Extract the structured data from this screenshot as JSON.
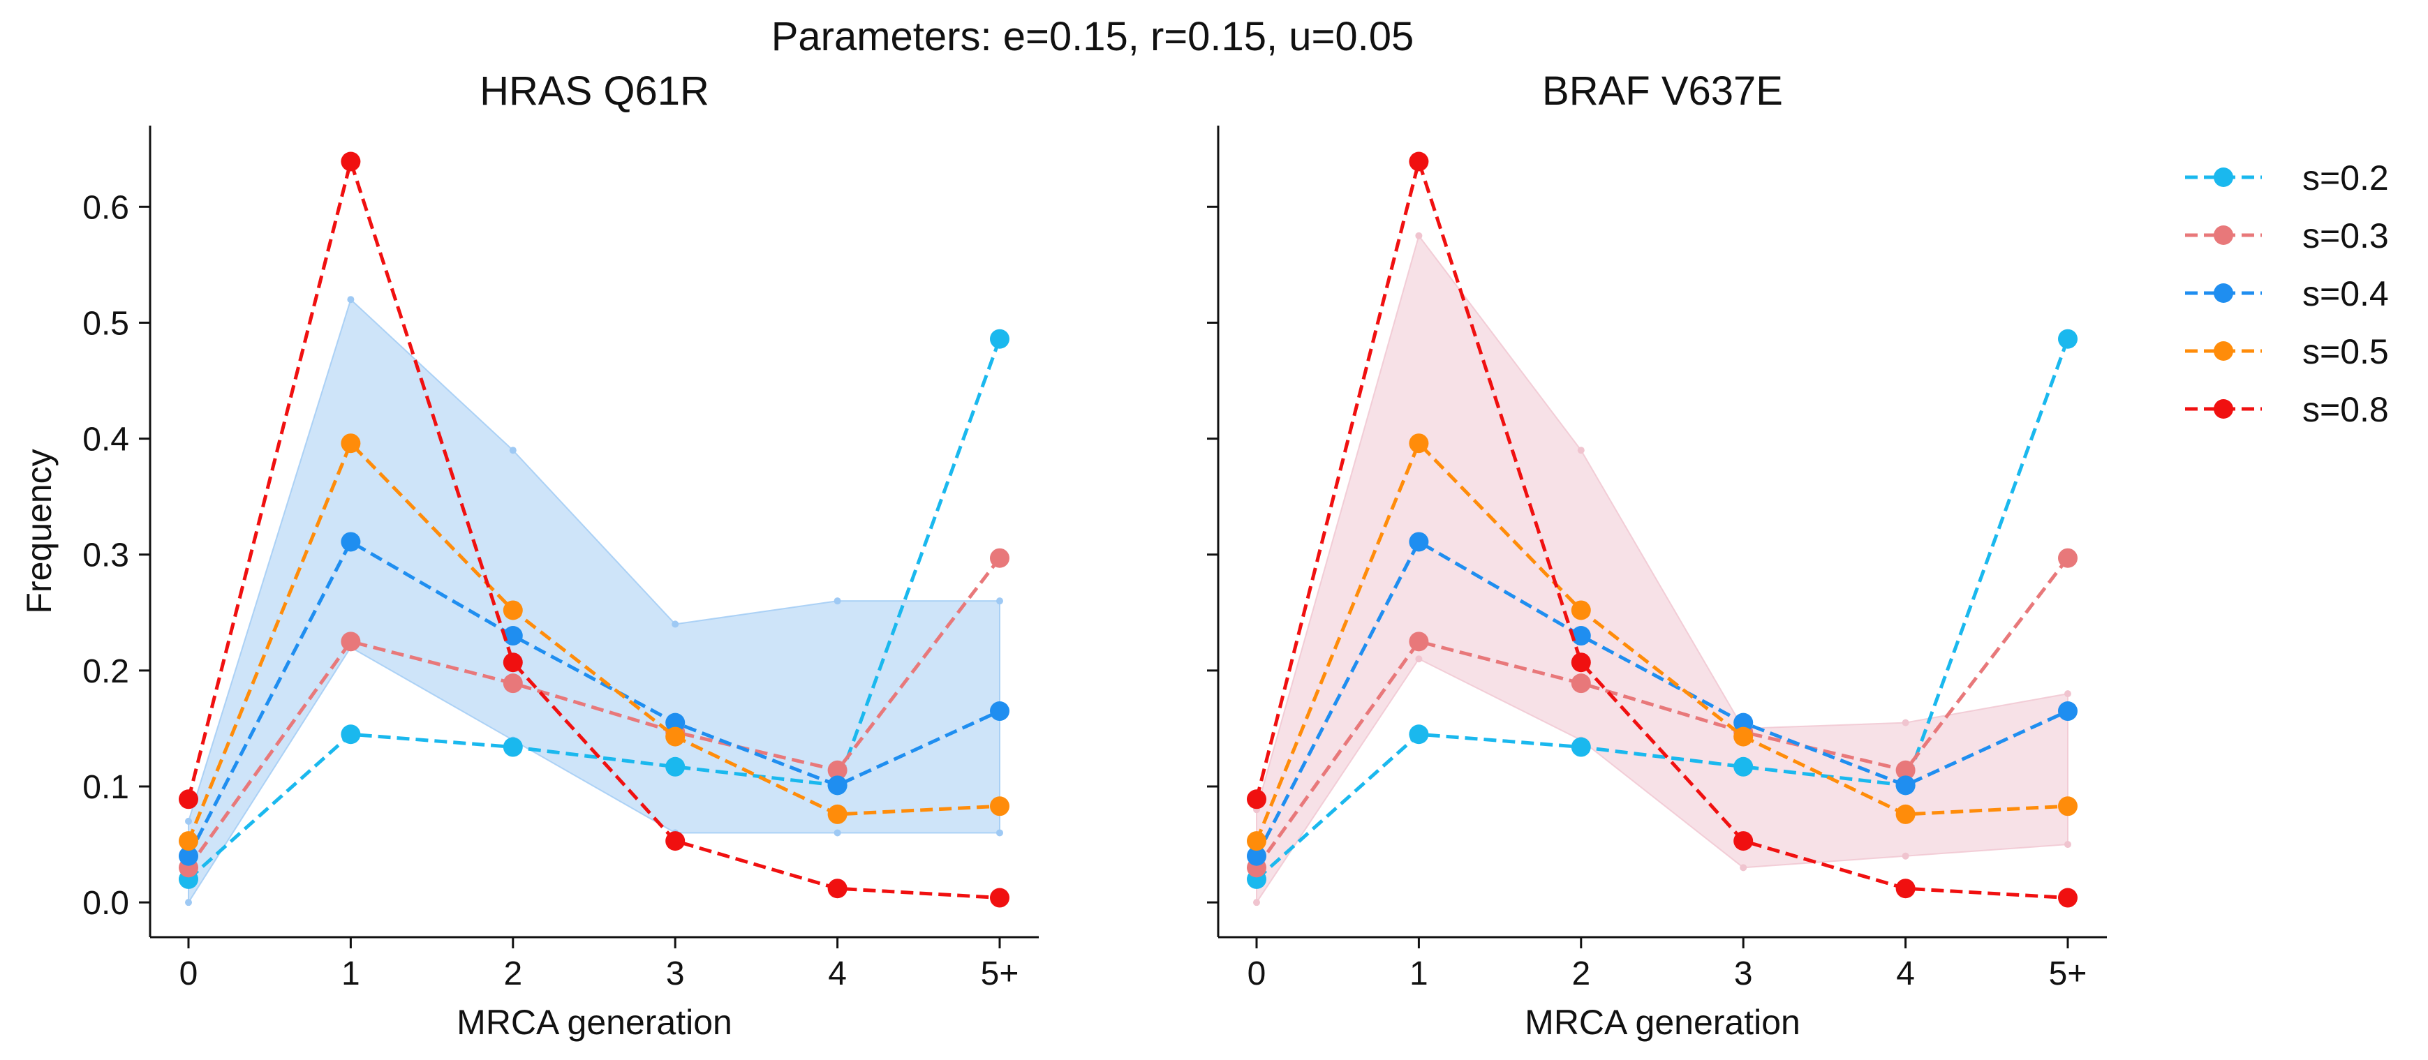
{
  "figure": {
    "suptitle": "Parameters: e=0.15, r=0.15, u=0.05"
  },
  "chart_data": [
    {
      "type": "line",
      "title": "HRAS Q61R",
      "xlabel": "MRCA generation",
      "ylabel": "Frequency",
      "categories": [
        "0",
        "1",
        "2",
        "3",
        "4",
        "5+"
      ],
      "ylim": [
        -0.03,
        0.67
      ],
      "yticks": [
        "0.0",
        "0.1",
        "0.2",
        "0.3",
        "0.4",
        "0.5",
        "0.6"
      ],
      "y_tick_labels_shown": true,
      "grid": false,
      "band": {
        "color": "#9ec9f4",
        "upper": [
          0.07,
          0.52,
          0.39,
          0.24,
          0.26,
          0.26
        ],
        "lower": [
          0.0,
          0.22,
          0.14,
          0.06,
          0.06,
          0.06
        ]
      },
      "series": [
        {
          "name": "s=0.2",
          "color": "#1ab8ee",
          "values": [
            0.02,
            0.145,
            0.134,
            0.117,
            0.101,
            0.486
          ]
        },
        {
          "name": "s=0.3",
          "color": "#e8787a",
          "values": [
            0.03,
            0.225,
            0.189,
            0.147,
            0.114,
            0.297
          ]
        },
        {
          "name": "s=0.4",
          "color": "#1f8ef0",
          "values": [
            0.04,
            0.311,
            0.23,
            0.155,
            0.101,
            0.165
          ]
        },
        {
          "name": "s=0.5",
          "color": "#ff8c0a",
          "values": [
            0.053,
            0.396,
            0.252,
            0.143,
            0.076,
            0.083
          ]
        },
        {
          "name": "s=0.8",
          "color": "#f01010",
          "values": [
            0.089,
            0.639,
            0.207,
            0.053,
            0.012,
            0.004
          ]
        }
      ]
    },
    {
      "type": "line",
      "title": "BRAF V637E",
      "xlabel": "MRCA generation",
      "ylabel": "",
      "categories": [
        "0",
        "1",
        "2",
        "3",
        "4",
        "5+"
      ],
      "ylim": [
        -0.03,
        0.67
      ],
      "yticks": [
        "0.0",
        "0.1",
        "0.2",
        "0.3",
        "0.4",
        "0.5",
        "0.6"
      ],
      "y_tick_labels_shown": false,
      "grid": false,
      "band": {
        "color": "#f0c4cf",
        "upper": [
          0.08,
          0.575,
          0.39,
          0.15,
          0.155,
          0.18
        ],
        "lower": [
          0.0,
          0.21,
          0.14,
          0.03,
          0.04,
          0.05
        ]
      },
      "series": [
        {
          "name": "s=0.2",
          "color": "#1ab8ee",
          "values": [
            0.02,
            0.145,
            0.134,
            0.117,
            0.101,
            0.486
          ]
        },
        {
          "name": "s=0.3",
          "color": "#e8787a",
          "values": [
            0.03,
            0.225,
            0.189,
            0.147,
            0.114,
            0.297
          ]
        },
        {
          "name": "s=0.4",
          "color": "#1f8ef0",
          "values": [
            0.04,
            0.311,
            0.23,
            0.155,
            0.101,
            0.165
          ]
        },
        {
          "name": "s=0.5",
          "color": "#ff8c0a",
          "values": [
            0.053,
            0.396,
            0.252,
            0.143,
            0.076,
            0.083
          ]
        },
        {
          "name": "s=0.8",
          "color": "#f01010",
          "values": [
            0.089,
            0.639,
            0.207,
            0.053,
            0.012,
            0.004
          ]
        }
      ]
    }
  ],
  "legend": {
    "placement": "right",
    "entries": [
      "s=0.2",
      "s=0.3",
      "s=0.4",
      "s=0.5",
      "s=0.8"
    ]
  }
}
